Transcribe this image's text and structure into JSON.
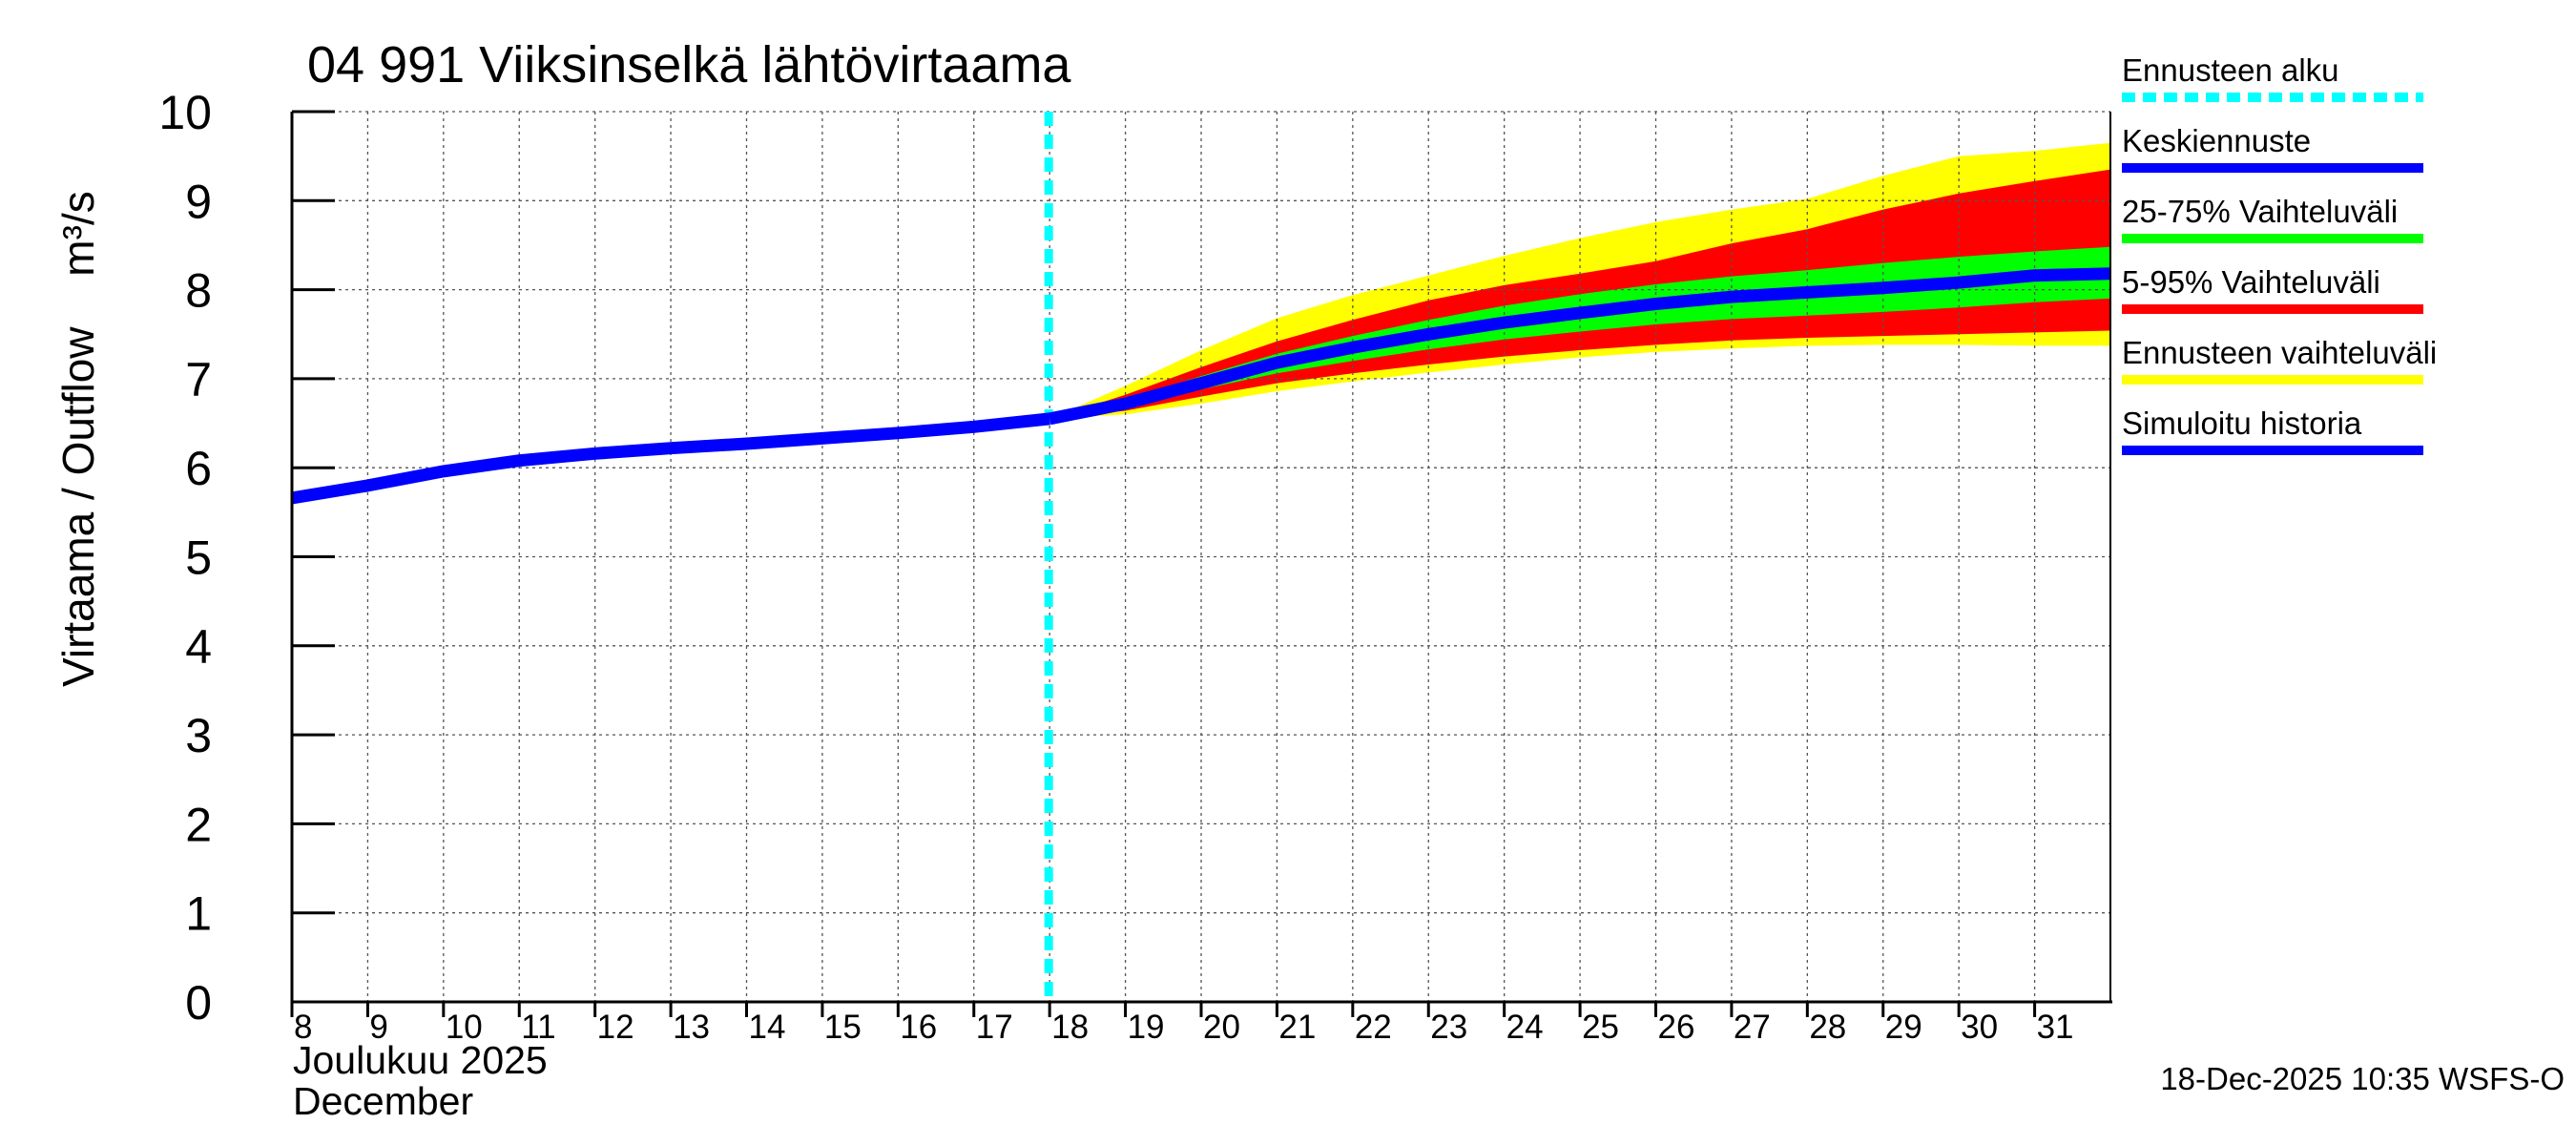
{
  "chart_data": {
    "type": "area",
    "title": "04 991 Viiksinselkä lähtövirtaama",
    "ylabel_fi": "Virtaama / Outflow",
    "ylabel_unit": "m³/s",
    "ylim": [
      0,
      10
    ],
    "yticks": [
      0,
      1,
      2,
      3,
      4,
      5,
      6,
      7,
      8,
      9,
      10
    ],
    "xlim": [
      8,
      32
    ],
    "xticks": [
      8,
      9,
      10,
      11,
      12,
      13,
      14,
      15,
      16,
      17,
      18,
      19,
      20,
      21,
      22,
      23,
      24,
      25,
      26,
      27,
      28,
      29,
      30,
      31
    ],
    "month_label_fi": "Joulukuu  2025",
    "month_label_en": "December",
    "forecast_start": 18,
    "grid": true,
    "timestamp": "18-Dec-2025 10:35 WSFS-O",
    "colors": {
      "forecast_start": "#00ffff",
      "median": "#0000ff",
      "p25_75": "#00ff00",
      "p5_95": "#ff0000",
      "range": "#ffff00",
      "history": "#0000ff"
    },
    "legend": [
      {
        "label": "Ennusteen alku",
        "key": "forecast_start",
        "style": "dashed"
      },
      {
        "label": "Keskiennuste",
        "key": "median",
        "style": "line"
      },
      {
        "label": "25-75% Vaihteluväli",
        "key": "p25_75",
        "style": "line"
      },
      {
        "label": "5-95% Vaihteluväli",
        "key": "p5_95",
        "style": "line"
      },
      {
        "label": "Ennusteen vaihteluväli",
        "key": "range",
        "style": "line"
      },
      {
        "label": "Simuloitu historia",
        "key": "history",
        "style": "line"
      }
    ],
    "history": {
      "x": [
        8,
        9,
        10,
        11,
        12,
        13,
        14,
        15,
        16,
        17,
        18
      ],
      "y": [
        5.66,
        5.8,
        5.96,
        6.08,
        6.16,
        6.22,
        6.27,
        6.33,
        6.39,
        6.46,
        6.55
      ]
    },
    "forecast": {
      "x": [
        18,
        19,
        20,
        21,
        22,
        23,
        24,
        25,
        26,
        27,
        28,
        29,
        30,
        31,
        32
      ],
      "median": [
        6.55,
        6.72,
        6.95,
        7.18,
        7.35,
        7.5,
        7.63,
        7.74,
        7.84,
        7.92,
        7.97,
        8.02,
        8.08,
        8.16,
        8.18
      ],
      "p25": [
        6.55,
        6.68,
        6.88,
        7.06,
        7.2,
        7.33,
        7.44,
        7.53,
        7.61,
        7.67,
        7.71,
        7.75,
        7.8,
        7.86,
        7.9
      ],
      "p75": [
        6.55,
        6.76,
        7.03,
        7.28,
        7.48,
        7.66,
        7.82,
        7.95,
        8.06,
        8.15,
        8.22,
        8.3,
        8.37,
        8.43,
        8.48
      ],
      "p5": [
        6.55,
        6.64,
        6.8,
        6.95,
        7.06,
        7.16,
        7.25,
        7.32,
        7.38,
        7.43,
        7.46,
        7.48,
        7.5,
        7.52,
        7.54
      ],
      "p95": [
        6.55,
        6.82,
        7.13,
        7.42,
        7.66,
        7.88,
        8.05,
        8.18,
        8.32,
        8.52,
        8.68,
        8.9,
        9.08,
        9.22,
        9.35
      ],
      "min": [
        6.55,
        6.6,
        6.72,
        6.86,
        6.97,
        7.07,
        7.16,
        7.24,
        7.3,
        7.34,
        7.37,
        7.38,
        7.38,
        7.37,
        7.37
      ],
      "max": [
        6.55,
        6.92,
        7.32,
        7.68,
        7.94,
        8.16,
        8.38,
        8.58,
        8.76,
        8.9,
        9.02,
        9.28,
        9.5,
        9.56,
        9.65
      ]
    }
  }
}
